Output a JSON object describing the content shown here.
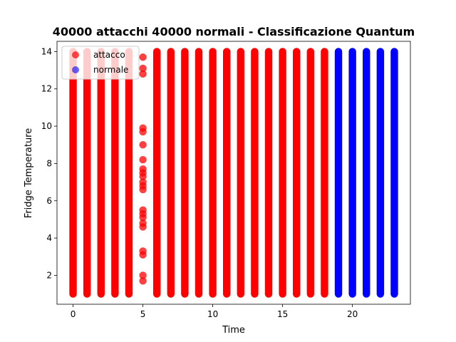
{
  "chart_data": {
    "type": "scatter",
    "title": "40000 attacchi 40000 normali - Classificazione Quantum",
    "xlabel": "Time",
    "ylabel": "Fridge Temperature",
    "xlim": [
      -1.15,
      24.15
    ],
    "ylim": [
      0.45,
      14.55
    ],
    "x_ticks": [
      0,
      5,
      10,
      15,
      20
    ],
    "y_ticks": [
      2,
      4,
      6,
      8,
      10,
      12,
      14
    ],
    "grid": false,
    "legend_position": "upper-left",
    "y_range_dense": [
      1,
      14
    ],
    "series": [
      {
        "name": "attacco",
        "color": "#ff0000",
        "dense_x": [
          0,
          1,
          2,
          3,
          4,
          6,
          7,
          8,
          9,
          10,
          11,
          12,
          13,
          14,
          15,
          16,
          17,
          18
        ],
        "sparse_points": [
          [
            5,
            1.7
          ],
          [
            5,
            2.0
          ],
          [
            5,
            3.1
          ],
          [
            5,
            3.3
          ],
          [
            5,
            4.6
          ],
          [
            5,
            4.8
          ],
          [
            5,
            5.1
          ],
          [
            5,
            5.3
          ],
          [
            5,
            5.5
          ],
          [
            5,
            6.6
          ],
          [
            5,
            6.8
          ],
          [
            5,
            7.0
          ],
          [
            5,
            7.3
          ],
          [
            5,
            7.5
          ],
          [
            5,
            7.7
          ],
          [
            5,
            8.2
          ],
          [
            5,
            9.0
          ],
          [
            5,
            9.7
          ],
          [
            5,
            9.9
          ],
          [
            5,
            12.8
          ],
          [
            5,
            13.1
          ],
          [
            5,
            13.7
          ]
        ]
      },
      {
        "name": "normale",
        "color": "#0000ff",
        "dense_x": [
          19,
          20,
          21,
          22,
          23
        ],
        "sparse_points": []
      }
    ]
  }
}
